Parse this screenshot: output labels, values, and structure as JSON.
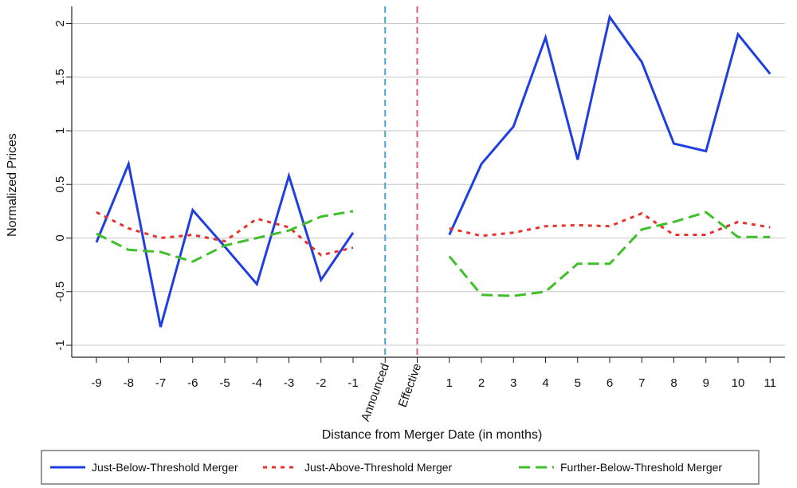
{
  "chart_data": {
    "type": "line",
    "title": "",
    "xlabel": "Distance from Merger Date (in months)",
    "ylabel": "Normalized Prices",
    "ylim": [
      -1.1,
      2.15
    ],
    "yticks": [
      -1,
      -0.5,
      0,
      0.5,
      1,
      1.5,
      2
    ],
    "ytick_labels": [
      "-1",
      "-0.5",
      "0",
      "0.5",
      "1",
      "1.5",
      "2"
    ],
    "x_categories": [
      "-9",
      "-8",
      "-7",
      "-6",
      "-5",
      "-4",
      "-3",
      "-2",
      "-1",
      "Announced",
      "Effective",
      "1",
      "2",
      "3",
      "4",
      "5",
      "6",
      "7",
      "8",
      "9",
      "10",
      "11"
    ],
    "rotated_labels": [
      "Announced",
      "Effective"
    ],
    "grid": "horizontal",
    "legend_position": "bottom",
    "vlines": [
      {
        "x": "Announced",
        "color": "#4aa3c8"
      },
      {
        "x": "Effective",
        "color": "#d9607a"
      }
    ],
    "series": [
      {
        "name": "Just-Below-Threshold Merger",
        "color": "#1f3fe0",
        "dash": "solid",
        "segments": [
          {
            "x": [
              "-9",
              "-8",
              "-7",
              "-6",
              "-5",
              "-4",
              "-3",
              "-2",
              "-1"
            ],
            "y": [
              -0.04,
              0.69,
              -0.83,
              0.26,
              -0.08,
              -0.43,
              0.58,
              -0.39,
              0.05
            ]
          },
          {
            "x": [
              "1",
              "2",
              "3",
              "4",
              "5",
              "6",
              "7",
              "8",
              "9",
              "10",
              "11"
            ],
            "y": [
              0.03,
              0.69,
              1.04,
              1.87,
              0.73,
              2.06,
              1.64,
              0.88,
              0.81,
              1.9,
              1.53
            ]
          }
        ]
      },
      {
        "name": "Just-Above-Threshold Merger",
        "color": "#e8322c",
        "dash": "dotted",
        "segments": [
          {
            "x": [
              "-9",
              "-8",
              "-7",
              "-6",
              "-5",
              "-4",
              "-3",
              "-2",
              "-1"
            ],
            "y": [
              0.24,
              0.09,
              0.0,
              0.03,
              -0.03,
              0.18,
              0.1,
              -0.16,
              -0.09
            ]
          },
          {
            "x": [
              "1",
              "2",
              "3",
              "4",
              "5",
              "6",
              "7",
              "8",
              "9",
              "10",
              "11"
            ],
            "y": [
              0.09,
              0.02,
              0.05,
              0.11,
              0.12,
              0.11,
              0.23,
              0.03,
              0.03,
              0.15,
              0.1
            ]
          }
        ]
      },
      {
        "name": "Further-Below-Threshold Merger",
        "color": "#3fbf2a",
        "dash": "dashed",
        "segments": [
          {
            "x": [
              "-9",
              "-8",
              "-7",
              "-6",
              "-5",
              "-4",
              "-3",
              "-2",
              "-1"
            ],
            "y": [
              0.04,
              -0.11,
              -0.13,
              -0.22,
              -0.07,
              0.0,
              0.07,
              0.2,
              0.25
            ]
          },
          {
            "x": [
              "1",
              "2",
              "3",
              "4",
              "5",
              "6",
              "7",
              "8",
              "9",
              "10",
              "11"
            ],
            "y": [
              -0.17,
              -0.53,
              -0.54,
              -0.5,
              -0.24,
              -0.24,
              0.08,
              0.15,
              0.24,
              0.01,
              0.01
            ]
          }
        ]
      }
    ]
  }
}
